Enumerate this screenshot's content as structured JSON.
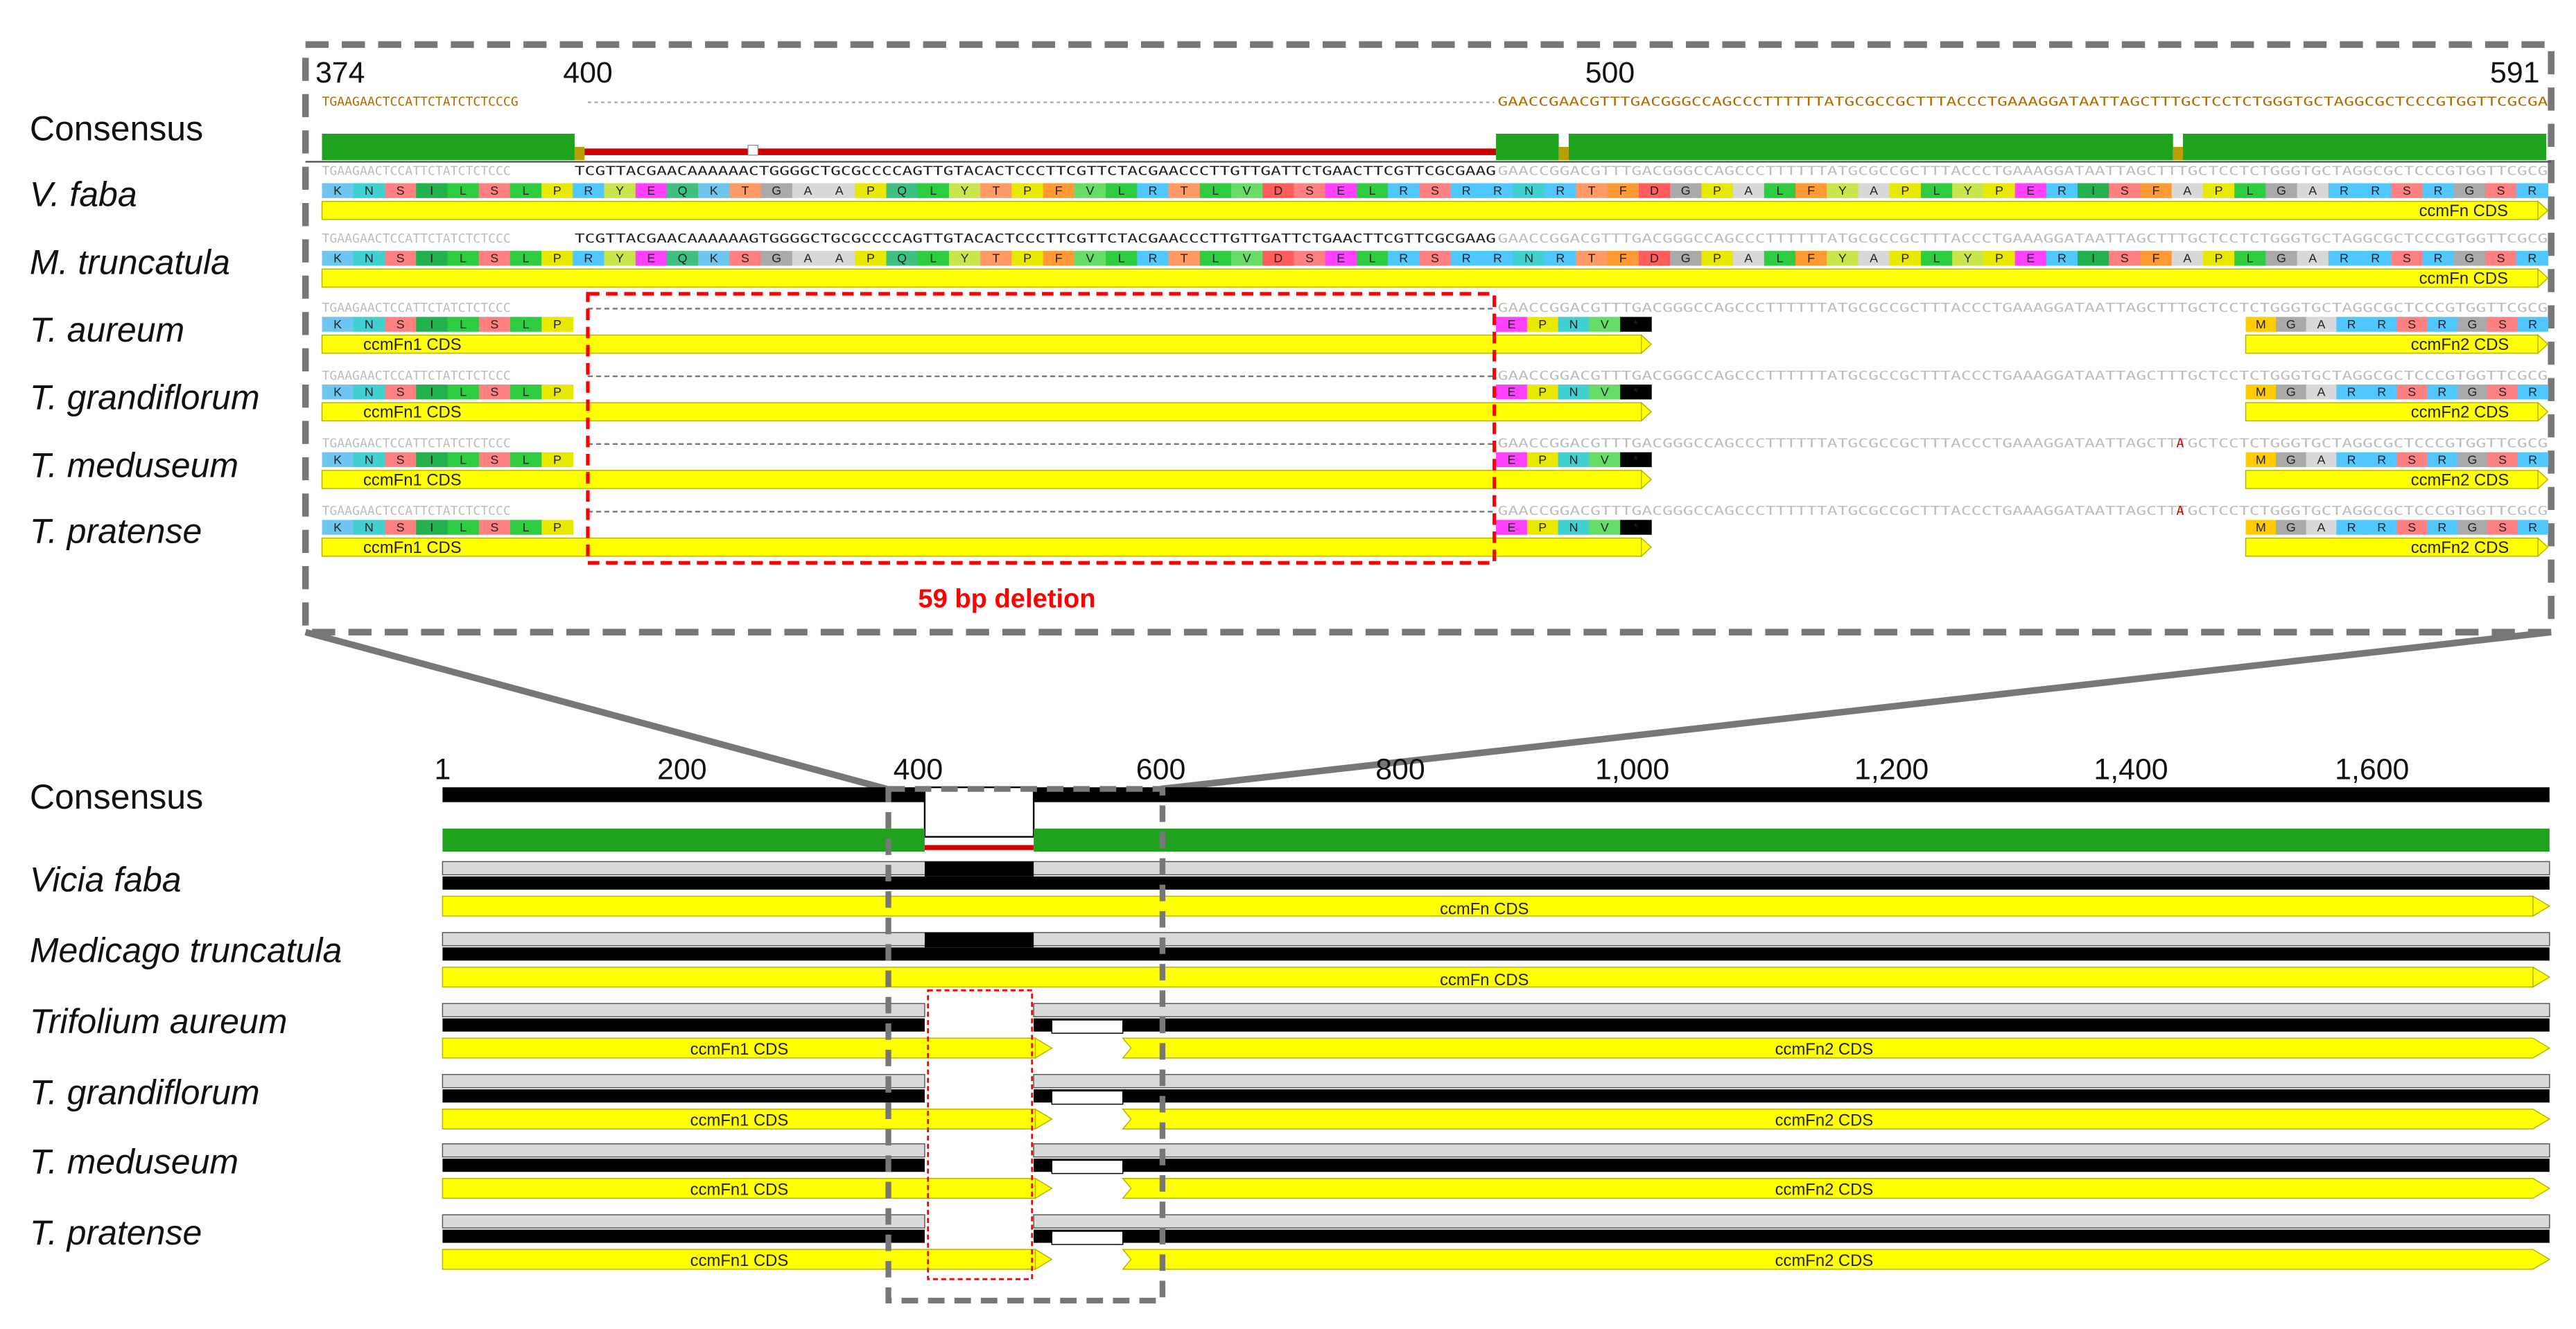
{
  "zoom": {
    "ruler": [
      "374",
      "400",
      "500",
      "591"
    ],
    "consensus_label": "Consensus",
    "consensus_seq_left": "TGAAGAACTCCATTCTATCTCTCCCG",
    "consensus_seq_right": "GAACCGAACGTTTGACGGGCCAGCCCTTTTTTATGCGCCGCTTTACCCTGAAAGGATAATTAGCTTTGCTCCTCTGGGTGCTAGGCGCTCCCGTGGTTCGCGA",
    "species": [
      "V. faba",
      "M. truncatula",
      "T. aureum",
      "T. grandiflorum",
      "T. meduseum",
      "T. pratense"
    ],
    "seq_faded_left": "TGAAGAACTCCATTCTATCTCTCCC",
    "vfaba_insert": "TCGTTACGAACAAAAAACTGGGGCTGCGCCCCAGTTGTACACTCCCTTCGTTCTACGAACCCTTGTTGATTCTGAACTTCGTTCGCGAAG",
    "mtrunc_insert": "TCGTTACGAACAAAAAAGTGGGGCTGCGCCCCAGTTGTACACTCCCTTCGTTCTACGAACCCTTGTTGATTCTGAACTTCGTTCGCGAAG",
    "seq_faded_right": "GAACCGGACGTTTGACGGGCCAGCCCTTTTTTATGCGCCGCTTTACCCTGAAAGGATAATTAGCTTTGCTCCTCTGGGTGCTAGGCGCTCCCGTGGTTCGCG",
    "aa_full": [
      "K",
      "N",
      "S",
      "I",
      "L",
      "S",
      "L",
      "P",
      "R",
      "Y",
      "E",
      "Q",
      "K",
      "T",
      "G",
      "A",
      "A",
      "P",
      "Q",
      "L",
      "Y",
      "T",
      "P",
      "F",
      "V",
      "L",
      "R",
      "T",
      "L",
      "V",
      "D",
      "S",
      "E",
      "L",
      "R",
      "S",
      "R",
      "R",
      "N",
      "R",
      "T",
      "F",
      "D",
      "G",
      "P",
      "A",
      "L",
      "F",
      "Y",
      "A",
      "P",
      "L",
      "Y",
      "P",
      "E",
      "R",
      "I",
      "S",
      "F",
      "A",
      "P",
      "L",
      "G",
      "A",
      "R",
      "R",
      "S",
      "R",
      "G",
      "S",
      "R"
    ],
    "aa_mtrunc": [
      "K",
      "N",
      "S",
      "I",
      "L",
      "S",
      "L",
      "P",
      "R",
      "Y",
      "E",
      "Q",
      "K",
      "S",
      "G",
      "A",
      "A",
      "P",
      "Q",
      "L",
      "Y",
      "T",
      "P",
      "F",
      "V",
      "L",
      "R",
      "T",
      "L",
      "V",
      "D",
      "S",
      "E",
      "L",
      "R",
      "S",
      "R",
      "R",
      "N",
      "R",
      "T",
      "F",
      "D",
      "G",
      "P",
      "A",
      "L",
      "F",
      "Y",
      "A",
      "P",
      "L",
      "Y",
      "P",
      "E",
      "R",
      "I",
      "S",
      "F",
      "A",
      "P",
      "L",
      "G",
      "A",
      "R",
      "R",
      "S",
      "R",
      "G",
      "S",
      "R"
    ],
    "aa_n1": [
      "K",
      "N",
      "S",
      "I",
      "L",
      "S",
      "L",
      "P"
    ],
    "aa_n1_end": [
      "E",
      "P",
      "N",
      "V",
      "*"
    ],
    "aa_n2": [
      "M",
      "G",
      "A",
      "R",
      "R",
      "S",
      "R",
      "G",
      "S",
      "R"
    ],
    "cds_full": "ccmFn CDS",
    "cds_n1": "ccmFn1 CDS",
    "cds_n2": "ccmFn2 CDS",
    "deletion_label": "59 bp deletion",
    "meduseum_mut": "A"
  },
  "overview": {
    "ruler": [
      "1",
      "200",
      "400",
      "600",
      "800",
      "1,000",
      "1,200",
      "1,400",
      "1,600"
    ],
    "consensus_label": "Consensus",
    "species": [
      "Vicia faba",
      "Medicago truncatula",
      "Trifolium aureum",
      "T. grandiflorum",
      "T. meduseum",
      "T. pratense"
    ],
    "cds_full": "ccmFn CDS",
    "cds_n1": "ccmFn1 CDS",
    "cds_n2": "ccmFn2 CDS"
  },
  "colors": {
    "identity_green": "#1fa31f",
    "cds_yellow": "#ffff00",
    "deletion_red": "#ff0000",
    "frame_gray": "#777777"
  }
}
